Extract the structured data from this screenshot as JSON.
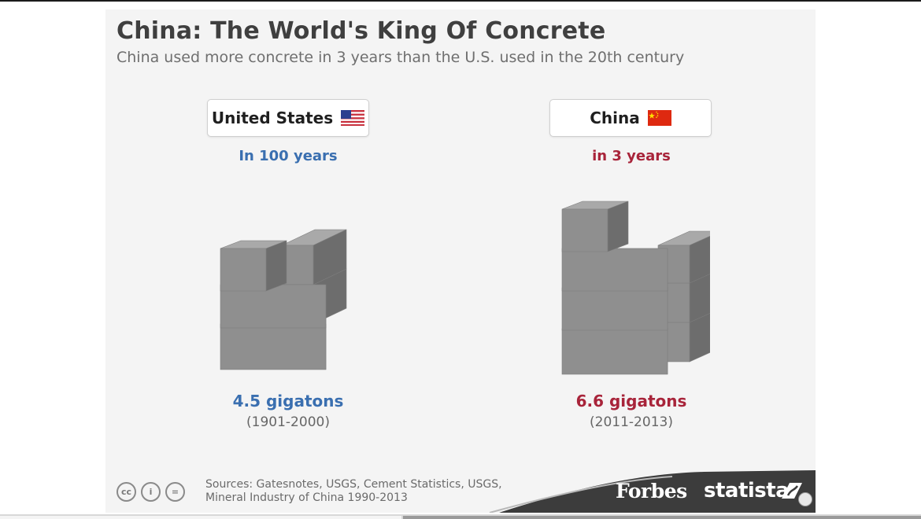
{
  "title": "China: The World's King Of Concrete",
  "subtitle": "China used more concrete in 3 years than the U.S. used in the 20th century",
  "countries": [
    {
      "name": "United States",
      "period": "In 100 years",
      "amount": "4.5 gigatons",
      "range": "(1901-2000)",
      "flag": "us-flag-icon",
      "color": "#3a6fb0"
    },
    {
      "name": "China",
      "period": "in 3 years",
      "amount": "6.6 gigatons",
      "range": "(2011-2013)",
      "flag": "china-flag-icon",
      "color": "#a8243a"
    }
  ],
  "footer": {
    "sources_line1": "Sources: Gatesnotes, USGS, Cement Statistics, USGS,",
    "sources_line2": "Mineral Industry of China 1990-2013",
    "license_icons": [
      "creative-commons-icon",
      "attribution-icon",
      "no-derivatives-icon"
    ],
    "license_glyphs": [
      "cc",
      "i",
      "="
    ],
    "logos": {
      "forbes": "Forbes",
      "statista": "statista"
    }
  },
  "chart_data": {
    "type": "bar",
    "categories": [
      "United States",
      "China"
    ],
    "values": [
      4.5,
      6.6
    ],
    "unit": "gigatons",
    "periods": [
      "In 100 years",
      "in 3 years"
    ],
    "ranges": [
      "(1901-2000)",
      "(2011-2013)"
    ],
    "title": "China: The World's King Of Concrete",
    "subtitle": "China used more concrete in 3 years than the U.S. used in the 20th century"
  }
}
